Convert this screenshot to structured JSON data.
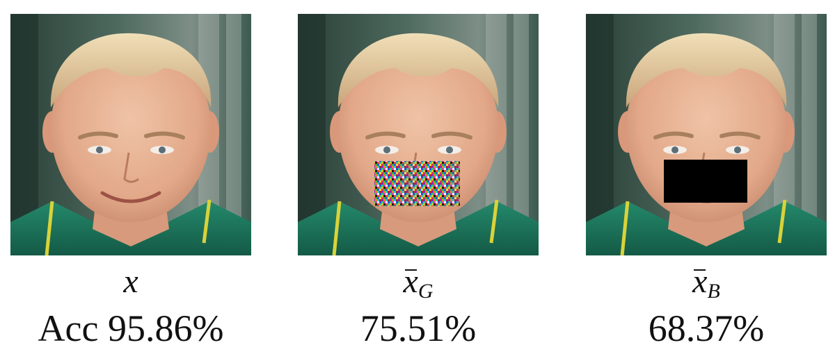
{
  "panels": [
    {
      "symbol": "x",
      "subscript": "",
      "value": "Acc 95.86%",
      "occlusion": "none"
    },
    {
      "symbol": "x",
      "subscript": "G",
      "value": "75.51%",
      "occlusion": "gaussian-noise-patch"
    },
    {
      "symbol": "x",
      "subscript": "B",
      "value": "68.37%",
      "occlusion": "black-patch"
    }
  ],
  "colors": {
    "background": "#ffffff",
    "skin": "#e8b79a",
    "hair": "#e9d2a6",
    "jacket": "#1e7a61",
    "black_patch": "#000000"
  }
}
